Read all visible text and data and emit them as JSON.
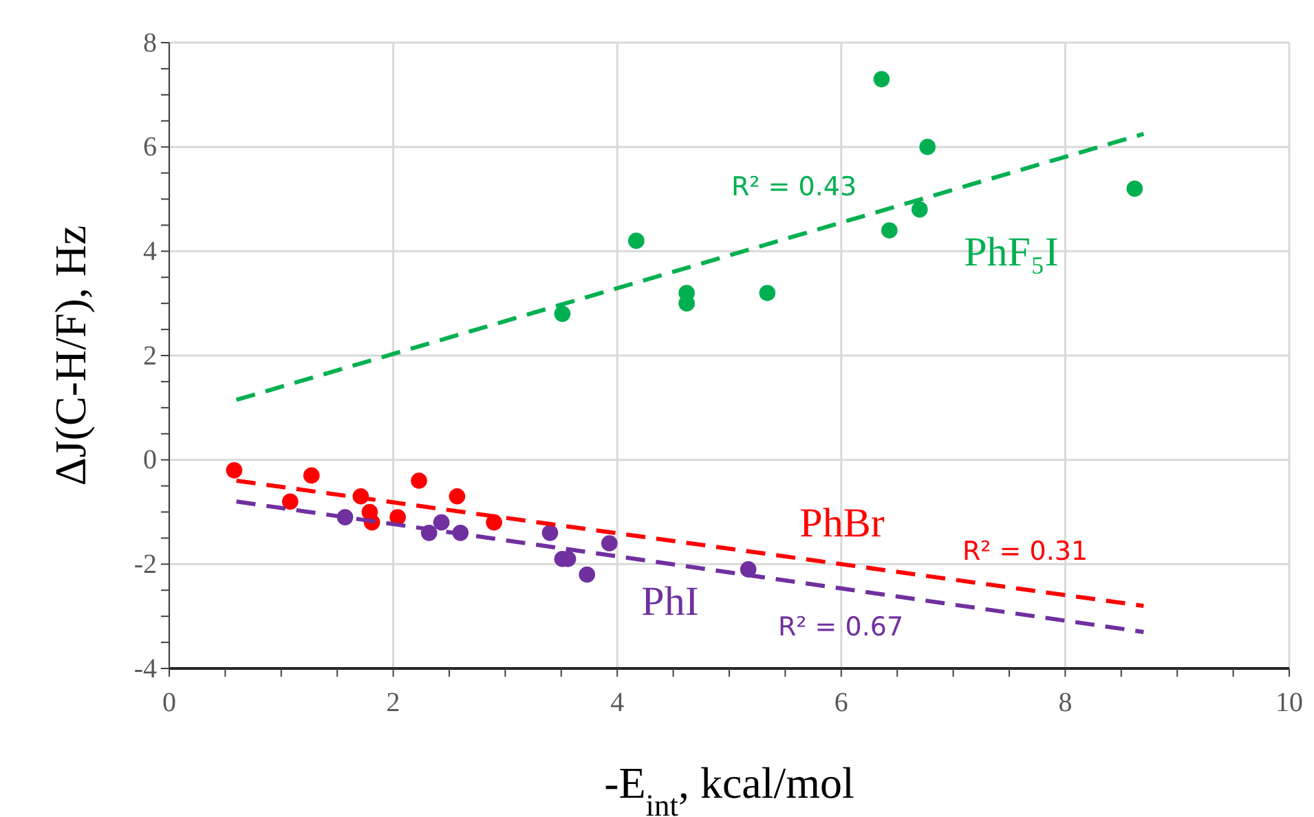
{
  "chart_data": {
    "type": "scatter",
    "xlabel": "-E$_{int}$, kcal/mol",
    "ylabel": "ΔJ(C-H/F), Hz",
    "xlim": [
      0,
      10
    ],
    "ylim": [
      -4,
      8
    ],
    "xticks": [
      0,
      {
        "value": 0.5,
        "label": null
      },
      {
        "value": 1,
        "label": null
      },
      {
        "value": 1.5,
        "label": null
      },
      2,
      {
        "value": 2.5,
        "label": null
      },
      {
        "value": 3,
        "label": null
      },
      {
        "value": 3.5,
        "label": null
      },
      4,
      {
        "value": 4.5,
        "label": null
      },
      {
        "value": 5,
        "label": null
      },
      {
        "value": 5.5,
        "label": null
      },
      6,
      {
        "value": 6.5,
        "label": null
      },
      {
        "value": 7,
        "label": null
      },
      {
        "value": 7.5,
        "label": null
      },
      8,
      {
        "value": 8.5,
        "label": null
      },
      {
        "value": 9,
        "label": null
      },
      {
        "value": 9.5,
        "label": null
      },
      10
    ],
    "yticks": [
      -4,
      {
        "value": -3.5,
        "label": null
      },
      {
        "value": -3,
        "label": null
      },
      {
        "value": -2.5,
        "label": null
      },
      -2,
      {
        "value": -1.5,
        "label": null
      },
      {
        "value": -1,
        "label": null
      },
      {
        "value": -0.5,
        "label": null
      },
      0,
      {
        "value": 0.5,
        "label": null
      },
      {
        "value": 1,
        "label": null
      },
      {
        "value": 1.5,
        "label": null
      },
      2,
      {
        "value": 2.5,
        "label": null
      },
      {
        "value": 3,
        "label": null
      },
      {
        "value": 3.5,
        "label": null
      },
      4,
      {
        "value": 4.5,
        "label": null
      },
      {
        "value": 5,
        "label": null
      },
      {
        "value": 5.5,
        "label": null
      },
      6,
      {
        "value": 6.5,
        "label": null
      },
      {
        "value": 7,
        "label": null
      },
      {
        "value": 7.5,
        "label": null
      },
      8
    ],
    "grid": true,
    "marker": "circle",
    "series": [
      {
        "color": "#00b050",
        "x": [
          3.51,
          4.17,
          4.62,
          4.62,
          5.34,
          6.36,
          6.43,
          6.7,
          6.77,
          8.62
        ],
        "values": [
          2.8,
          4.2,
          3.2,
          3.0,
          3.2,
          7.3,
          4.4,
          4.8,
          6.0,
          5.2
        ]
      },
      {
        "color": "#ff0000",
        "x": [
          0.58,
          1.08,
          1.27,
          1.71,
          1.79,
          1.81,
          2.04,
          2.23,
          2.57,
          2.9
        ],
        "values": [
          -0.2,
          -0.8,
          -0.3,
          -0.7,
          -1.0,
          -1.2,
          -1.1,
          -0.4,
          -0.7,
          -1.2
        ]
      },
      {
        "color": "#7030a0",
        "x": [
          1.57,
          2.32,
          2.43,
          2.6,
          3.4,
          3.51,
          3.56,
          3.73,
          3.93,
          5.17
        ],
        "values": [
          -1.1,
          -1.4,
          -1.2,
          -1.4,
          -1.4,
          -1.9,
          -1.9,
          -2.2,
          -1.6,
          -2.1
        ]
      },
      {
        "type": "line",
        "line_style": "dashed",
        "marker": "none",
        "color": "#00b050",
        "x": [
          0.6,
          8.7
        ],
        "values": [
          1.15,
          6.25
        ]
      },
      {
        "type": "line",
        "line_style": "dashed",
        "marker": "none",
        "color": "#ff0000",
        "x": [
          0.6,
          8.7
        ],
        "values": [
          -0.4,
          -2.8
        ]
      },
      {
        "type": "line",
        "line_style": "dashed",
        "marker": "none",
        "color": "#7030a0",
        "x": [
          0.6,
          8.7
        ],
        "values": [
          -0.8,
          -3.3
        ]
      }
    ],
    "annotations": [
      "PhF₅I",
      "PhBr",
      "PhI",
      "R² = 0.43",
      "R² = 0.31",
      "R² = 0.67"
    ]
  }
}
